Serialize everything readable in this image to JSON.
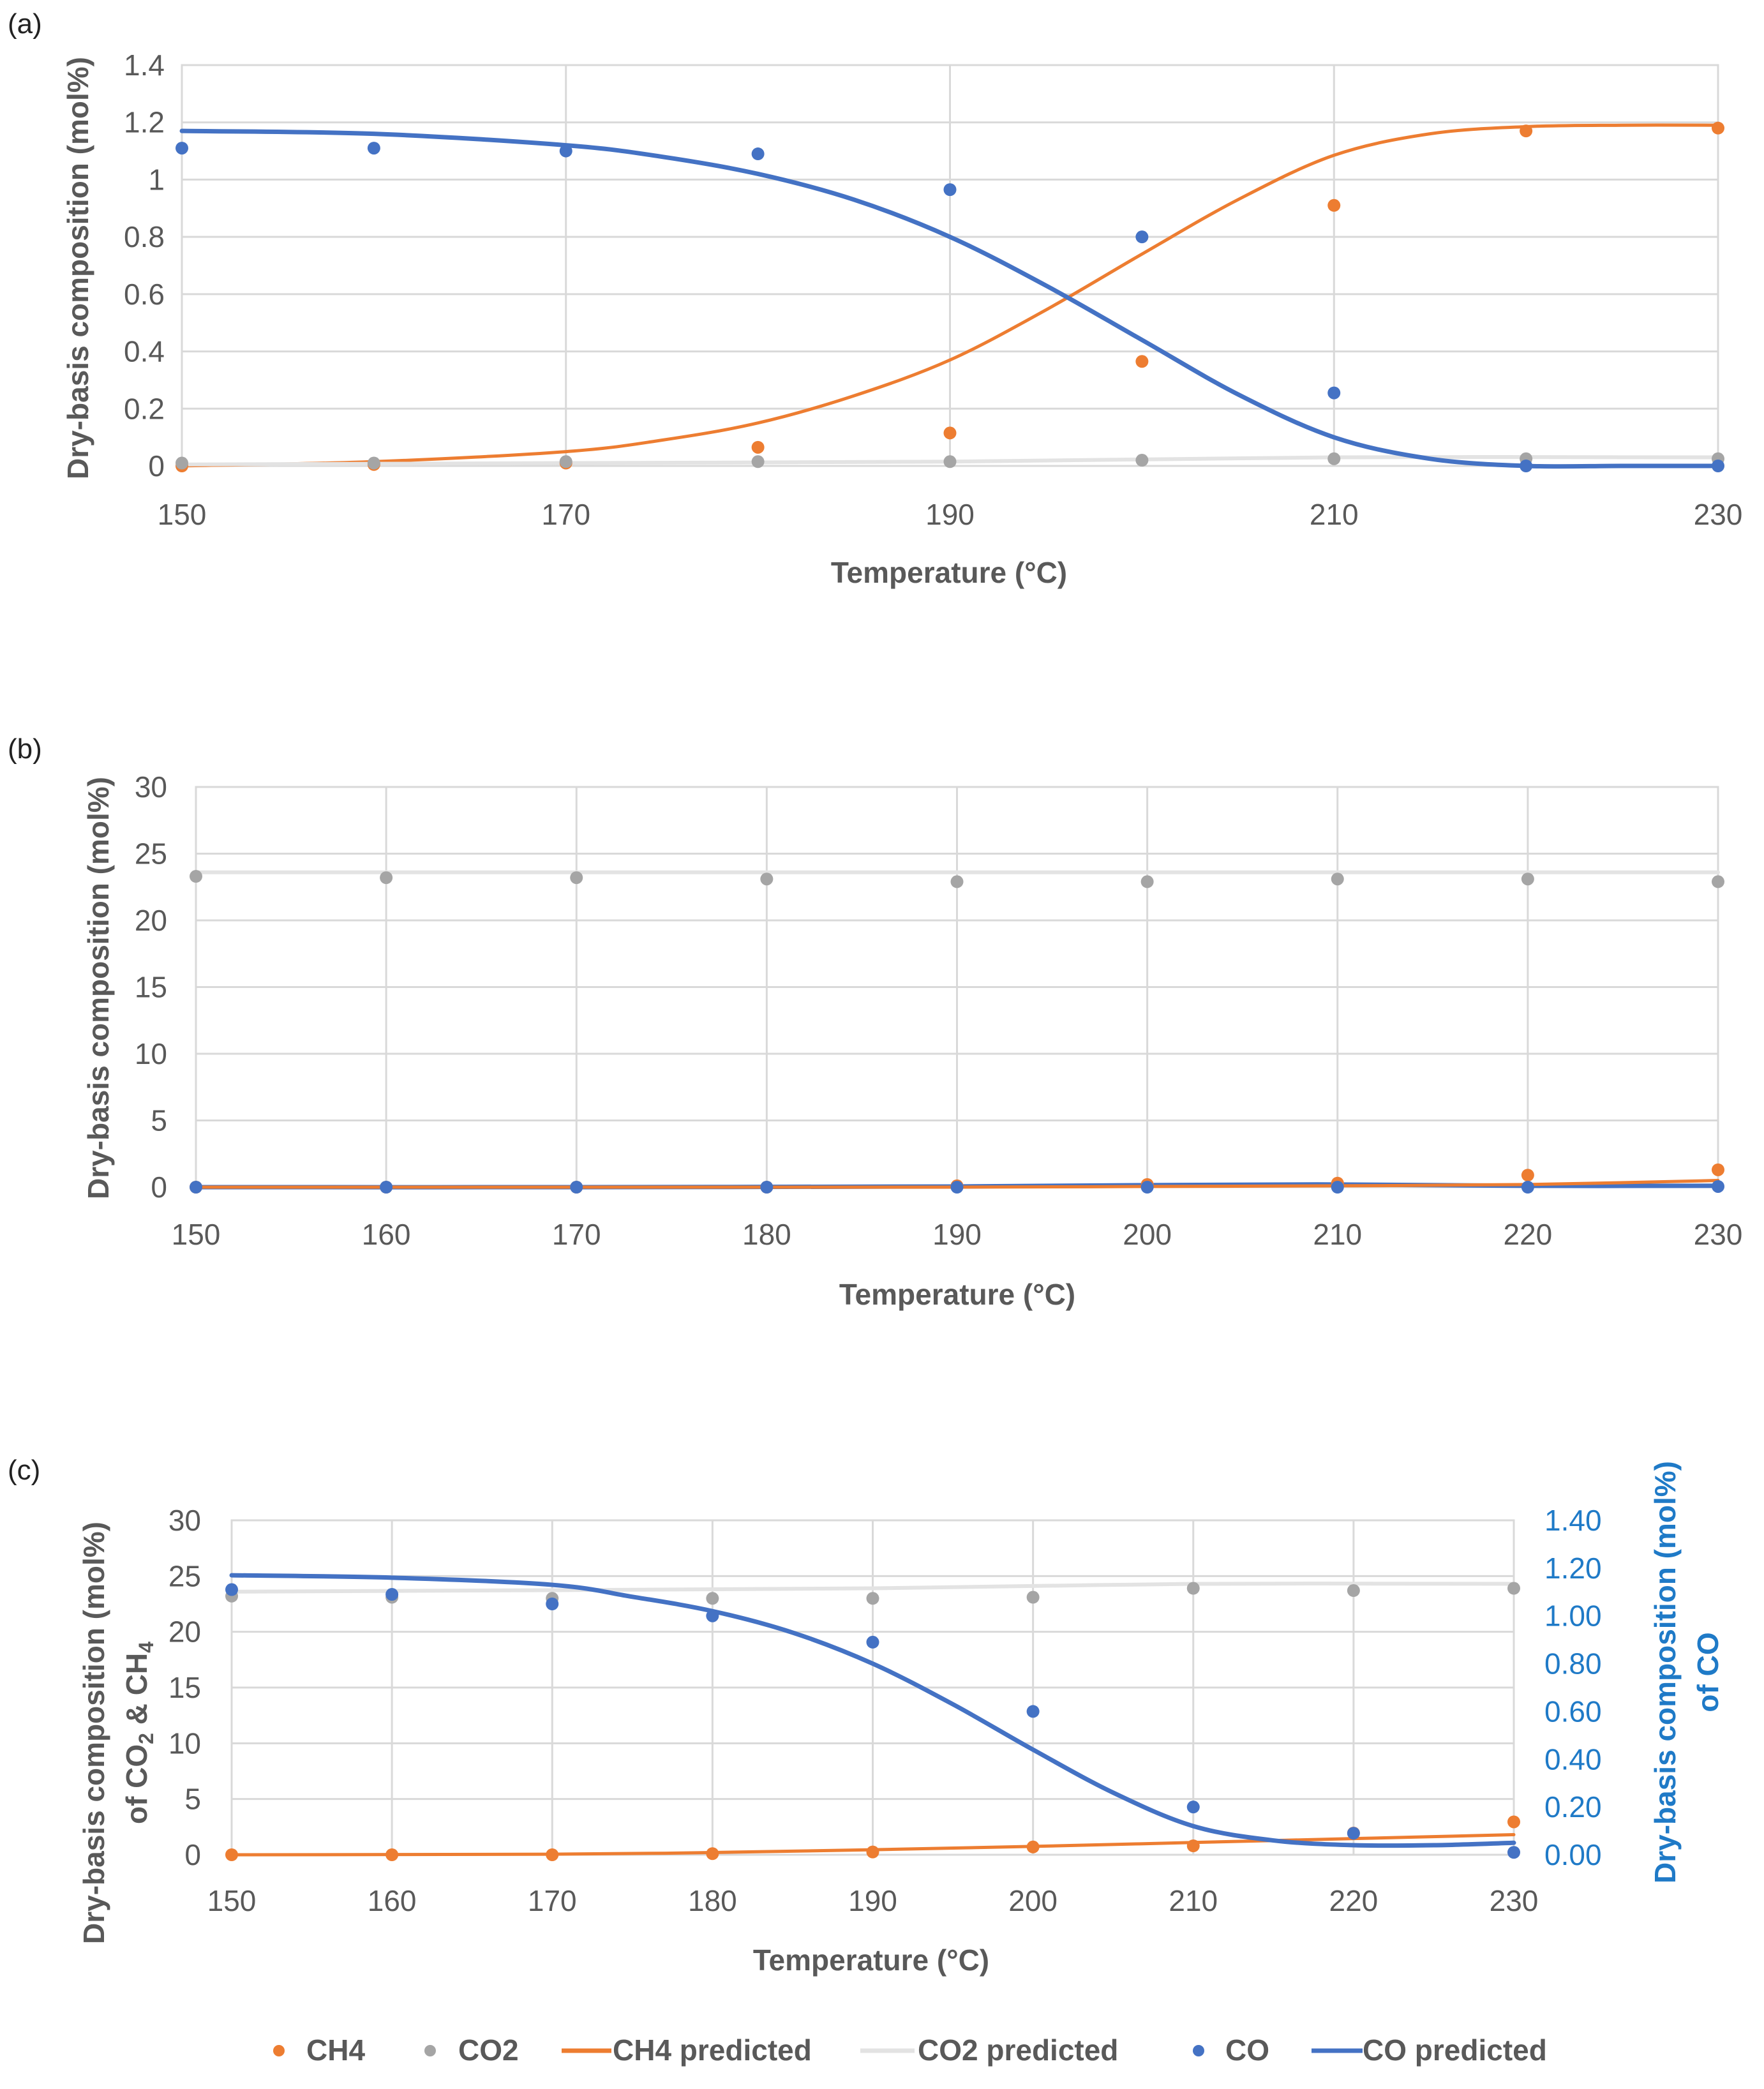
{
  "chart_data": [
    {
      "type": "scatter",
      "panel_label": "(a)",
      "xlabel": "Temperature (°C)",
      "ylabel": "Dry-basis composition (mol%)",
      "xlim": [
        150,
        230
      ],
      "ylim": [
        0,
        1.4
      ],
      "xticks": [
        150,
        170,
        190,
        210,
        230
      ],
      "xtick_labels": [
        "150",
        "170",
        "190",
        "210",
        "230"
      ],
      "yticks": [
        0,
        0.2,
        0.4,
        0.6,
        0.8,
        1,
        1.2,
        1.4
      ],
      "ytick_labels": [
        "0",
        "0.2",
        "0.4",
        "0.6",
        "0.8",
        "1",
        "1.2",
        "1.4"
      ],
      "grid": true,
      "series": [
        {
          "name": "CH4",
          "kind": "points",
          "color": "#ed7d31",
          "x": [
            150,
            160,
            170,
            180,
            190,
            200,
            210,
            220,
            230
          ],
          "values": [
            0.0,
            0.005,
            0.01,
            0.065,
            0.115,
            0.365,
            0.91,
            1.17,
            1.18
          ]
        },
        {
          "name": "CO2",
          "kind": "points",
          "color": "#a5a5a5",
          "x": [
            150,
            160,
            170,
            180,
            190,
            200,
            210,
            220,
            230
          ],
          "values": [
            0.01,
            0.01,
            0.015,
            0.015,
            0.015,
            0.02,
            0.025,
            0.025,
            0.025
          ]
        },
        {
          "name": "CO",
          "kind": "points",
          "color": "#4472c4",
          "x": [
            150,
            160,
            170,
            180,
            190,
            200,
            210,
            220,
            230
          ],
          "values": [
            1.11,
            1.11,
            1.1,
            1.09,
            0.965,
            0.8,
            0.255,
            0.0,
            0.0
          ]
        },
        {
          "name": "CH4 predicted",
          "kind": "line",
          "color": "#ed7d31",
          "x": [
            150,
            160,
            170,
            175,
            180,
            185,
            190,
            195,
            200,
            205,
            210,
            215,
            220,
            225,
            230
          ],
          "values": [
            0.0,
            0.015,
            0.05,
            0.09,
            0.15,
            0.245,
            0.37,
            0.545,
            0.74,
            0.93,
            1.085,
            1.16,
            1.185,
            1.19,
            1.19
          ]
        },
        {
          "name": "CO2 predicted",
          "kind": "line",
          "color": "#e3e3e3",
          "x": [
            150,
            170,
            190,
            210,
            230
          ],
          "values": [
            0.005,
            0.01,
            0.015,
            0.03,
            0.03
          ]
        },
        {
          "name": "CO predicted",
          "kind": "line",
          "color": "#4472c4",
          "x": [
            150,
            160,
            170,
            175,
            180,
            185,
            190,
            195,
            200,
            205,
            210,
            215,
            220,
            225,
            230
          ],
          "values": [
            1.17,
            1.16,
            1.12,
            1.08,
            1.02,
            0.93,
            0.8,
            0.63,
            0.44,
            0.25,
            0.1,
            0.025,
            0.0,
            0.0,
            0.0
          ]
        }
      ]
    },
    {
      "type": "scatter",
      "panel_label": "(b)",
      "xlabel": "Temperature (°C)",
      "ylabel": "Dry-basis composition (mol%)",
      "xlim": [
        150,
        230
      ],
      "ylim": [
        0,
        30
      ],
      "xticks": [
        150,
        160,
        170,
        180,
        190,
        200,
        210,
        220,
        230
      ],
      "xtick_labels": [
        "150",
        "160",
        "170",
        "180",
        "190",
        "200",
        "210",
        "220",
        "230"
      ],
      "yticks": [
        0,
        5,
        10,
        15,
        20,
        25,
        30
      ],
      "ytick_labels": [
        "0",
        "5",
        "10",
        "15",
        "20",
        "25",
        "30"
      ],
      "grid": true,
      "series": [
        {
          "name": "CO2",
          "kind": "points",
          "color": "#a5a5a5",
          "x": [
            150,
            160,
            170,
            180,
            190,
            200,
            210,
            220,
            230
          ],
          "values": [
            23.3,
            23.2,
            23.2,
            23.1,
            22.9,
            22.9,
            23.1,
            23.1,
            22.9
          ]
        },
        {
          "name": "CO2 predicted",
          "kind": "line",
          "color": "#e3e3e3",
          "x": [
            150,
            190,
            230
          ],
          "values": [
            23.6,
            23.6,
            23.6
          ]
        },
        {
          "name": "CH4",
          "kind": "points",
          "color": "#ed7d31",
          "x": [
            150,
            160,
            170,
            180,
            190,
            200,
            210,
            220,
            230
          ],
          "values": [
            0.0,
            0.0,
            0.0,
            0.0,
            0.1,
            0.2,
            0.3,
            0.9,
            1.3
          ]
        },
        {
          "name": "CO",
          "kind": "points",
          "color": "#4472c4",
          "x": [
            150,
            160,
            170,
            180,
            190,
            200,
            210,
            220,
            230
          ],
          "values": [
            0.0,
            0.0,
            0.0,
            0.0,
            0.0,
            0.0,
            0.0,
            0.0,
            0.05
          ]
        },
        {
          "name": "CO predicted",
          "kind": "line",
          "color": "#4472c4",
          "x": [
            150,
            170,
            190,
            200,
            210,
            220,
            230
          ],
          "values": [
            0.0,
            0.0,
            0.05,
            0.15,
            0.2,
            0.1,
            0.1
          ]
        },
        {
          "name": "CH4 predicted",
          "kind": "line",
          "color": "#ed7d31",
          "x": [
            150,
            170,
            190,
            200,
            210,
            220,
            230
          ],
          "values": [
            0.0,
            0.0,
            0.0,
            0.05,
            0.1,
            0.2,
            0.5
          ]
        }
      ]
    },
    {
      "type": "scatter",
      "panel_label": "(c)",
      "xlabel": "Temperature (°C)",
      "ylabel_parts": [
        "Dry-basis composition (mol%)",
        "of CO",
        "2",
        " & CH",
        "4"
      ],
      "ylabel_right_parts": [
        "Dry-basis composition (mol%)",
        "of CO"
      ],
      "xlim": [
        150,
        230
      ],
      "ylim": [
        0,
        30
      ],
      "ylim_right": [
        0,
        1.4
      ],
      "xticks": [
        150,
        160,
        170,
        180,
        190,
        200,
        210,
        220,
        230
      ],
      "xtick_labels": [
        "150",
        "160",
        "170",
        "180",
        "190",
        "200",
        "210",
        "220",
        "230"
      ],
      "yticks": [
        0,
        5,
        10,
        15,
        20,
        25,
        30
      ],
      "ytick_labels": [
        "0",
        "5",
        "10",
        "15",
        "20",
        "25",
        "30"
      ],
      "yticks_right": [
        0,
        0.2,
        0.4,
        0.6,
        0.8,
        1.0,
        1.2,
        1.4
      ],
      "ytick_labels_right": [
        "0.00",
        "0.20",
        "0.40",
        "0.60",
        "0.80",
        "1.00",
        "1.20",
        "1.40"
      ],
      "grid": true,
      "series": [
        {
          "name": "CO2",
          "kind": "points",
          "axis": "left",
          "color": "#a5a5a5",
          "x": [
            150,
            160,
            170,
            180,
            190,
            200,
            210,
            220,
            230
          ],
          "values": [
            23.2,
            23.1,
            23.0,
            23.0,
            23.0,
            23.1,
            23.9,
            23.7,
            23.9
          ]
        },
        {
          "name": "CO2 predicted",
          "kind": "line",
          "axis": "left",
          "color": "#e3e3e3",
          "x": [
            150,
            190,
            210,
            230
          ],
          "values": [
            23.6,
            23.9,
            24.3,
            24.3
          ]
        },
        {
          "name": "CH4",
          "kind": "points",
          "axis": "left",
          "color": "#ed7d31",
          "x": [
            150,
            160,
            170,
            180,
            190,
            200,
            210,
            220,
            230
          ],
          "values": [
            0.0,
            0.0,
            0.0,
            0.1,
            0.25,
            0.7,
            0.8,
            1.95,
            2.95
          ]
        },
        {
          "name": "CH4 predicted",
          "kind": "line",
          "axis": "left",
          "color": "#ed7d31",
          "x": [
            150,
            170,
            180,
            190,
            200,
            210,
            220,
            230
          ],
          "values": [
            0.0,
            0.05,
            0.2,
            0.45,
            0.75,
            1.1,
            1.45,
            1.8
          ]
        },
        {
          "name": "CO",
          "kind": "points",
          "axis": "right",
          "color": "#4472c4",
          "x": [
            150,
            160,
            170,
            180,
            190,
            200,
            210,
            220,
            230
          ],
          "values": [
            1.11,
            1.09,
            1.05,
            1.0,
            0.89,
            0.6,
            0.2,
            0.09,
            0.01
          ]
        },
        {
          "name": "CO predicted",
          "kind": "line",
          "axis": "right",
          "color": "#4472c4",
          "x": [
            150,
            160,
            170,
            175,
            180,
            185,
            190,
            195,
            200,
            205,
            210,
            215,
            220,
            225,
            230
          ],
          "values": [
            1.17,
            1.16,
            1.13,
            1.08,
            1.02,
            0.93,
            0.8,
            0.63,
            0.44,
            0.26,
            0.12,
            0.06,
            0.04,
            0.04,
            0.05
          ]
        }
      ]
    }
  ],
  "legend": {
    "placement": "bottom",
    "items": [
      {
        "label": "CH4",
        "kind": "points",
        "color": "#ed7d31"
      },
      {
        "label": "CO2",
        "kind": "points",
        "color": "#a5a5a5"
      },
      {
        "label": "CH4  predicted",
        "kind": "line",
        "color": "#ed7d31"
      },
      {
        "label": "CO2  predicted",
        "kind": "line",
        "color": "#e3e3e3"
      },
      {
        "label": "CO",
        "kind": "points",
        "color": "#4472c4"
      },
      {
        "label": "CO predicted",
        "kind": "line",
        "color": "#4472c4"
      }
    ]
  }
}
